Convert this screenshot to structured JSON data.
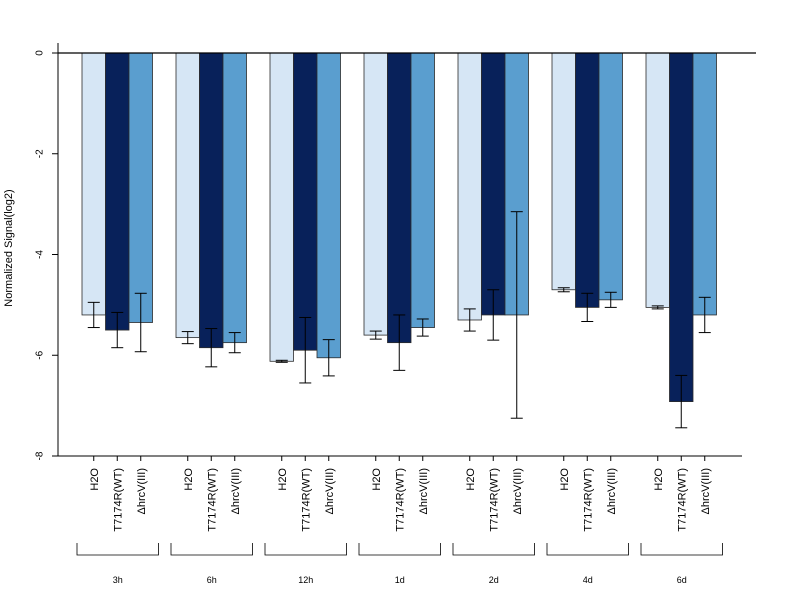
{
  "chart_data": {
    "type": "bar",
    "title": "",
    "xlabel": "",
    "ylabel": "Normalized Signal(log2)",
    "ylim": [
      -8,
      0
    ],
    "yticks": [
      0,
      -2,
      -4,
      -6,
      -8
    ],
    "grid": false,
    "groups": [
      "3h",
      "6h",
      "12h",
      "1d",
      "2d",
      "4d",
      "6d"
    ],
    "bar_labels": [
      "H2O",
      "T7174R(WT)",
      "ΔhrcV(III)"
    ],
    "series_colors": [
      "#d6e6f5",
      "#08215a",
      "#5a9ecf"
    ],
    "series": [
      {
        "name": "H2O",
        "values": [
          -5.2,
          -5.65,
          -6.12,
          -5.6,
          -5.3,
          -4.7,
          -5.05
        ],
        "errors": [
          0.25,
          0.12,
          0.02,
          0.08,
          0.22,
          0.04,
          0.03
        ]
      },
      {
        "name": "T7174R(WT)",
        "values": [
          -5.5,
          -5.85,
          -5.9,
          -5.75,
          -5.2,
          -5.05,
          -6.92
        ],
        "errors": [
          0.35,
          0.38,
          0.65,
          0.55,
          0.5,
          0.28,
          0.52
        ]
      },
      {
        "name": "ΔhrcV(III)",
        "values": [
          -5.35,
          -5.75,
          -6.05,
          -5.45,
          -5.2,
          -4.9,
          -5.2
        ],
        "errors": [
          0.58,
          0.2,
          0.36,
          0.17,
          2.05,
          0.15,
          0.35
        ]
      }
    ]
  }
}
